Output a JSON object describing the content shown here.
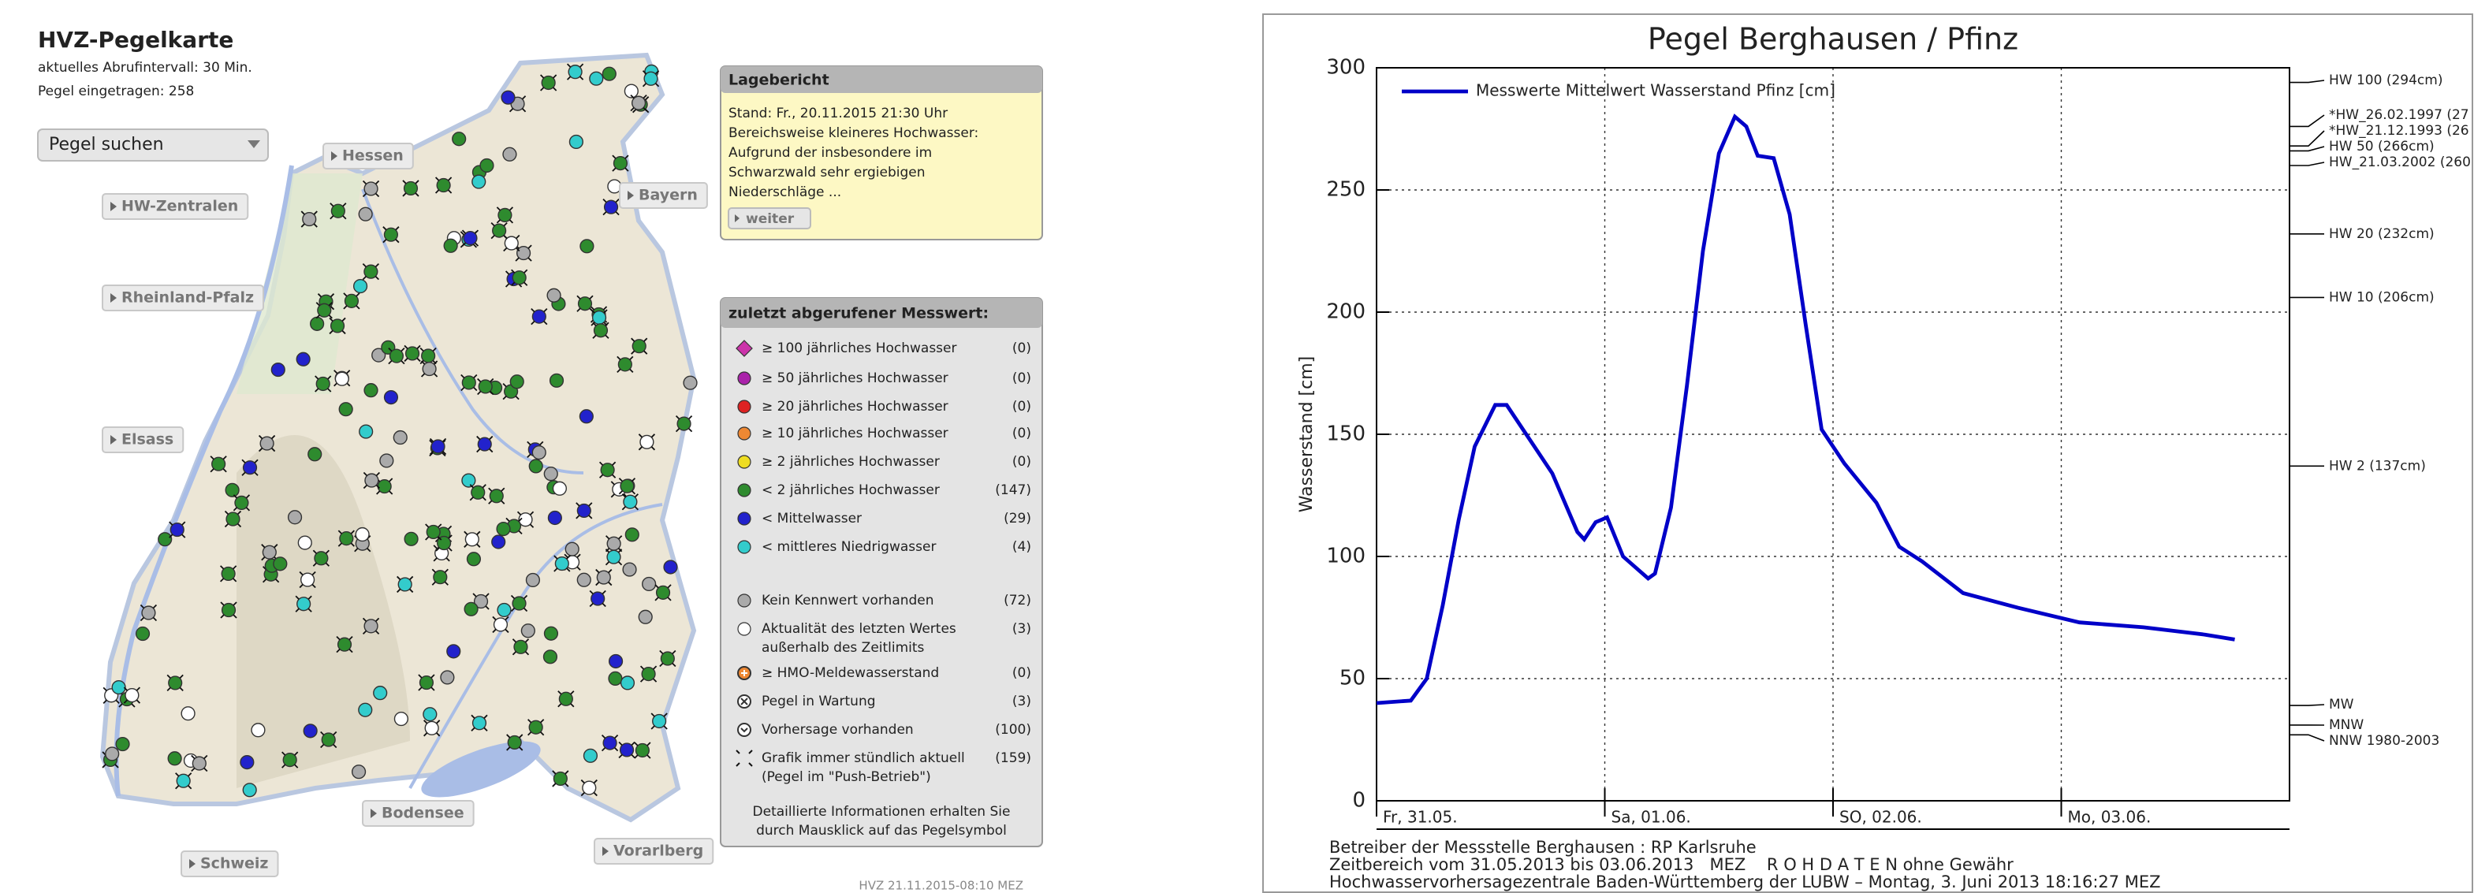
{
  "header": {
    "title": "HVZ-Pegelkarte",
    "lines": [
      "aktuelles Abrufintervall: 30 Min.",
      "Pegel eingetragen: 258"
    ]
  },
  "search": "Pegel suchen",
  "regions": [
    "Hessen",
    "HW-Zentralen",
    "Rheinland-Pfalz",
    "Bayern",
    "Elsass",
    "Bodensee",
    "Schweiz",
    "Vorarlberg"
  ],
  "report": {
    "title": "Lagebericht",
    "lines": [
      "Stand: Fr., 20.11.2015 21:30 Uhr",
      "Bereichsweise kleineres Hochwasser:",
      "Aufgrund der insbesondere im",
      "Schwarzwald sehr ergiebigen",
      "Niederschläge ..."
    ],
    "button": "weiter"
  },
  "legend": {
    "title": "zuletzt abgerufener Messwert:",
    "items": [
      {
        "label": [
          "≥ 100 jährliches Hochwasser"
        ],
        "count": "(0)"
      },
      {
        "label": [
          "≥ 50 jährliches Hochwasser"
        ],
        "count": "(0)"
      },
      {
        "label": [
          "≥ 20 jährliches Hochwasser"
        ],
        "count": "(0)"
      },
      {
        "label": [
          "≥ 10 jährliches Hochwasser"
        ],
        "count": "(0)"
      },
      {
        "label": [
          "≥ 2 jährliches Hochwasser"
        ],
        "count": "(0)"
      },
      {
        "label": [
          "< 2 jährliches Hochwasser"
        ],
        "count": "(147)"
      },
      {
        "label": [
          "< Mittelwasser"
        ],
        "count": "(29)"
      },
      {
        "label": [
          "< mittleres Niedrigwasser"
        ],
        "count": "(4)"
      },
      {
        "label": [
          "Kein Kennwert vorhanden"
        ],
        "count": "(72)"
      },
      {
        "label": [
          "Aktualität des letzten Wertes",
          "außerhalb des Zeitlimits"
        ],
        "count": "(3)"
      },
      {
        "label": [
          "≥ HMO-Meldewasserstand"
        ],
        "count": "(0)"
      },
      {
        "label": [
          "Pegel in Wartung"
        ],
        "count": "(3)"
      },
      {
        "label": [
          "Vorhersage vorhanden"
        ],
        "count": "(100)"
      },
      {
        "label": [
          "Grafik immer stündlich aktuell",
          "(Pegel im \"Push-Betrieb\")"
        ],
        "count": "(159)"
      }
    ],
    "note": [
      "Detaillierte Informationen erhalten Sie",
      "durch Mausklick auf das Pegelsymbol"
    ]
  },
  "timestamp": "HVZ 21.11.2015-08:10 MEZ",
  "chart_data": {
    "type": "line",
    "title": "Pegel Berghausen / Pfinz",
    "ylabel": "Wasserstand [cm]",
    "ylim": [
      0,
      300
    ],
    "yticks": [
      0,
      50,
      100,
      150,
      200,
      250,
      300
    ],
    "xlim": [
      0,
      4
    ],
    "xticks": [
      {
        "value": 0,
        "label": "Fr, 31.05."
      },
      {
        "value": 1,
        "label": "Sa, 01.06."
      },
      {
        "value": 2,
        "label": "SO, 02.06."
      },
      {
        "value": 3,
        "label": "Mo, 03.06."
      }
    ],
    "grid": true,
    "legend_position": "upper left",
    "series": [
      {
        "name": "Messwerte Mittelwert Wasserstand Pfinz [cm]",
        "color": "#0000c8",
        "x": [
          0,
          0.15,
          0.22,
          0.29,
          0.36,
          0.43,
          0.52,
          0.57,
          0.67,
          0.77,
          0.88,
          0.91,
          0.96,
          1.01,
          1.08,
          1.19,
          1.22,
          1.29,
          1.36,
          1.43,
          1.5,
          1.57,
          1.62,
          1.67,
          1.74,
          1.81,
          1.88,
          1.95,
          2.05,
          2.19,
          2.29,
          2.39,
          2.57,
          2.81,
          3.08,
          3.36,
          3.63,
          3.76
        ],
        "values": [
          40,
          41,
          50,
          80,
          115,
          145,
          162,
          162,
          148,
          134,
          110,
          107,
          114,
          116,
          100,
          91,
          93,
          120,
          170,
          225,
          265,
          280,
          276,
          264,
          263,
          240,
          195,
          152,
          138,
          122,
          104,
          98,
          85,
          79,
          73,
          71,
          68,
          66
        ]
      }
    ],
    "thresholds": [
      {
        "label": "HW 100 (294cm)",
        "value": 294
      },
      {
        "label": "*HW_26.02.1997 (27",
        "value": 276
      },
      {
        "label": "*HW_21.12.1993 (26",
        "value": 268
      },
      {
        "label": "HW 50 (266cm)",
        "value": 266
      },
      {
        "label": "HW_21.03.2002 (260",
        "value": 260
      },
      {
        "label": "HW 20 (232cm)",
        "value": 232
      },
      {
        "label": "HW 10 (206cm)",
        "value": 206
      },
      {
        "label": "HW 2 (137cm)",
        "value": 137
      },
      {
        "label": "MW",
        "value": 39
      },
      {
        "label": "MNW",
        "value": 31
      },
      {
        "label": "NNW 1980-2003",
        "value": 27
      }
    ],
    "footer": [
      "Betreiber der Messstelle Berghausen : RP Karlsruhe",
      "Zeitbereich vom 31.05.2013 bis 03.06.2013   MEZ    R O H D A T E N ohne Gewähr",
      "Hochwasservorhersagezentrale Baden-Württemberg der LUBW – Montag, 3. Juni 2013 18:16:27 MEZ"
    ]
  }
}
